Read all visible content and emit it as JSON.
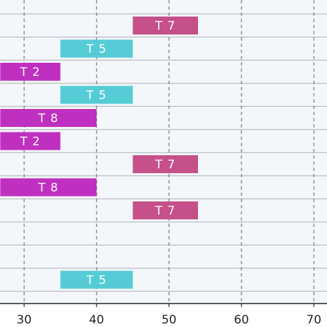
{
  "chart_data": {
    "type": "bar",
    "orientation": "horizontal",
    "title": "",
    "xlabel": "",
    "ylabel": "",
    "xlim": [
      26.7,
      72
    ],
    "x_ticks": [
      30,
      40,
      50,
      60,
      70
    ],
    "grid": {
      "vertical": "dashed",
      "horizontal": "solid"
    },
    "background": "#f3f6fa",
    "colors": {
      "T 2": "#c030c0",
      "T 5": "#55ccd5",
      "T 7": "#c5508a",
      "T 8": "#c030c0"
    },
    "rows": [
      {
        "label": "T 7",
        "start": 45,
        "end": 54
      },
      {
        "label": "T 5",
        "start": 35,
        "end": 45
      },
      {
        "label": "T 2",
        "start": 26.7,
        "end": 35
      },
      {
        "label": "T 5",
        "start": 35,
        "end": 45
      },
      {
        "label": "T 8",
        "start": 26.7,
        "end": 40
      },
      {
        "label": "T 2",
        "start": 26.7,
        "end": 35
      },
      {
        "label": "T 7",
        "start": 45,
        "end": 54
      },
      {
        "label": "T 8",
        "start": 26.7,
        "end": 40
      },
      {
        "label": "T 7",
        "start": 45,
        "end": 54
      },
      null,
      null,
      {
        "label": "T 5",
        "start": 35,
        "end": 45
      }
    ]
  }
}
